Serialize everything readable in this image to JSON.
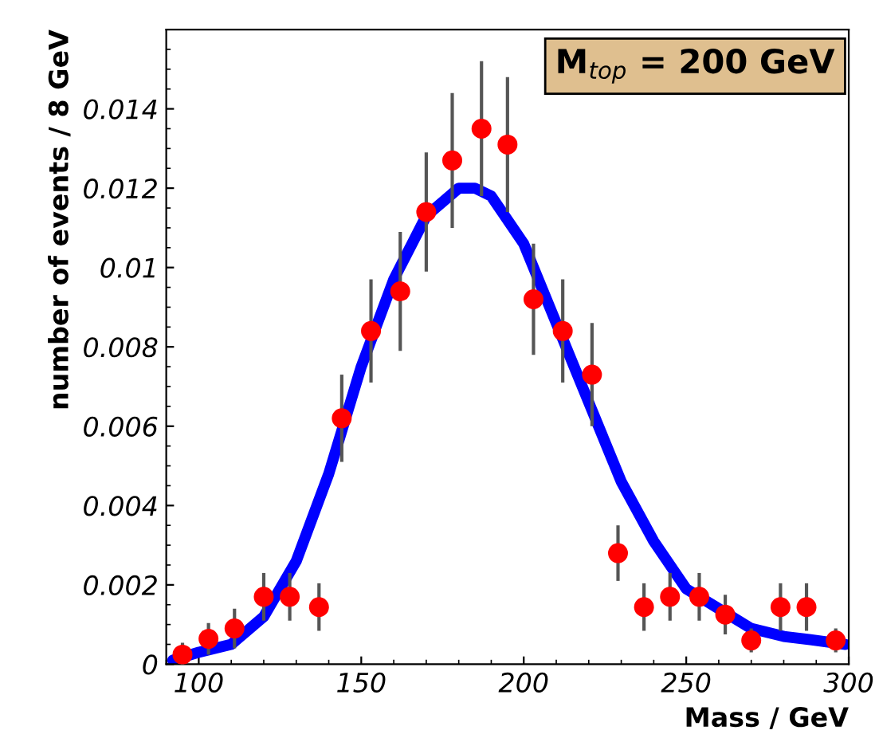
{
  "chart_data": {
    "type": "scatter",
    "xlabel": "Mass / GeV",
    "ylabel": "number of events / 8 GeV",
    "xlim": [
      90,
      300
    ],
    "ylim": [
      0,
      0.016
    ],
    "xticks": [
      100,
      150,
      200,
      250,
      300
    ],
    "yticks": [
      0,
      0.002,
      0.004,
      0.006,
      0.008,
      0.01,
      0.012,
      0.014
    ],
    "grid": false,
    "annotations": [
      "M$_{top}$ = 200 GeV"
    ],
    "series": [
      {
        "marker": "circle",
        "color": "#ff0000",
        "x": [
          95,
          103,
          111,
          120,
          128,
          137,
          144,
          153,
          162,
          170,
          178,
          187,
          195,
          203,
          212,
          221,
          229,
          237,
          245,
          254,
          262,
          270,
          279,
          287,
          296
        ],
        "values": [
          0.00024,
          0.00064,
          0.0009,
          0.0017,
          0.0017,
          0.00144,
          0.0062,
          0.0084,
          0.0094,
          0.0114,
          0.0127,
          0.0135,
          0.0131,
          0.0092,
          0.0084,
          0.0073,
          0.0028,
          0.00144,
          0.0017,
          0.0017,
          0.00125,
          0.0006,
          0.00144,
          0.00144,
          0.0006
        ],
        "errors": [
          0.0003,
          0.0004,
          0.0005,
          0.0006,
          0.0006,
          0.0006,
          0.0011,
          0.0013,
          0.0015,
          0.0015,
          0.0017,
          0.0017,
          0.0017,
          0.0014,
          0.0013,
          0.0013,
          0.0007,
          0.0006,
          0.0006,
          0.0006,
          0.0005,
          0.0003,
          0.0006,
          0.0006,
          0.0003
        ]
      },
      {
        "type": "line",
        "color": "#0000ff",
        "line_style": "solid",
        "marker": "none",
        "x": [
          92,
          100,
          110,
          120,
          130,
          140,
          150,
          160,
          170,
          180,
          185,
          190,
          200,
          210,
          220,
          230,
          240,
          250,
          260,
          270,
          280,
          290,
          299
        ],
        "values": [
          0.0001,
          0.0003,
          0.0005,
          0.0012,
          0.0026,
          0.0048,
          0.0075,
          0.0097,
          0.0113,
          0.012,
          0.012,
          0.0118,
          0.0106,
          0.0086,
          0.0066,
          0.0046,
          0.0031,
          0.0019,
          0.0014,
          0.0009,
          0.0007,
          0.0006,
          0.0005
        ]
      }
    ]
  }
}
